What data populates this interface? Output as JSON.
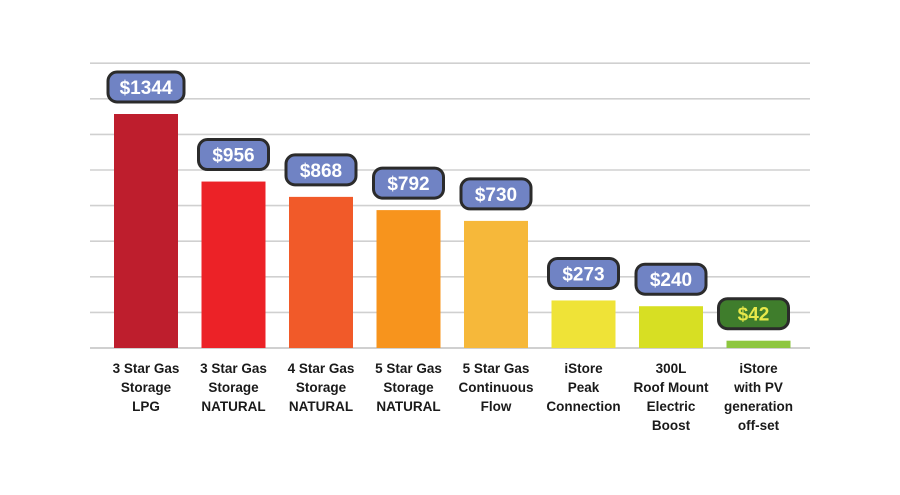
{
  "chart_data": {
    "type": "bar",
    "title": "",
    "xlabel": "",
    "ylabel": "",
    "grid": true,
    "ylim": [
      0,
      1500
    ],
    "categories": [
      [
        "3 Star Gas",
        "Storage",
        "LPG"
      ],
      [
        "3 Star Gas",
        "Storage",
        "NATURAL"
      ],
      [
        "4 Star Gas",
        "Storage",
        "NATURAL"
      ],
      [
        "5 Star Gas",
        "Storage",
        "NATURAL"
      ],
      [
        "5 Star Gas",
        "Continuous",
        "Flow"
      ],
      [
        "iStore",
        "Peak",
        "Connection"
      ],
      [
        "300L",
        "Roof Mount",
        "Electric",
        "Boost"
      ],
      [
        "iStore",
        "with PV",
        "generation",
        "off-set"
      ]
    ],
    "values": [
      1344,
      956,
      868,
      792,
      730,
      273,
      240,
      42
    ],
    "value_labels": [
      "$1344",
      "$956",
      "$868",
      "$792",
      "$730",
      "$273",
      "$240",
      "$42"
    ],
    "bar_colors": [
      "#be1e2d",
      "#ec2227",
      "#f15a29",
      "#f7941d",
      "#f6b83a",
      "#efe337",
      "#d7df23",
      "#8dc63f"
    ],
    "label_box_colors": [
      "#7083c4",
      "#7083c4",
      "#7083c4",
      "#7083c4",
      "#7083c4",
      "#7083c4",
      "#7083c4",
      "#3f7d2c"
    ],
    "label_text_colors": [
      "#ffffff",
      "#ffffff",
      "#ffffff",
      "#ffffff",
      "#ffffff",
      "#ffffff",
      "#ffffff",
      "#e8e84a"
    ],
    "grid_color": "#d0d0d0"
  }
}
